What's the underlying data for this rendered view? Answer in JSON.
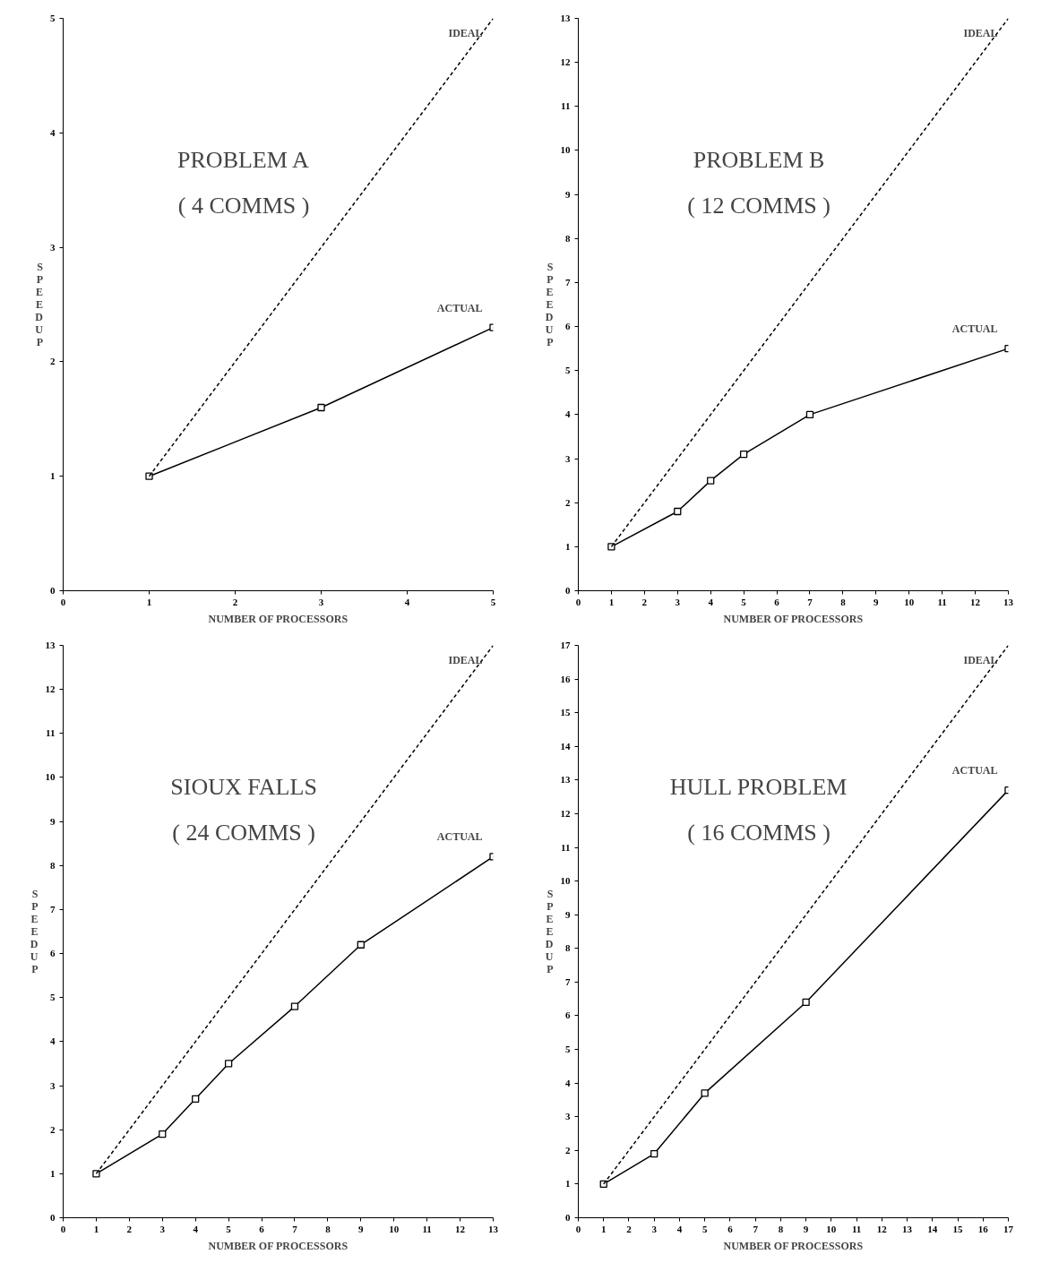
{
  "chart_data": [
    {
      "type": "line",
      "title": "PROBLEM A",
      "subtitle": "( 4 COMMS )",
      "xlabel": "NUMBER OF PROCESSORS",
      "ylabel": "SPEEDUP",
      "xlim": [
        0,
        5
      ],
      "ylim": [
        0,
        5
      ],
      "xticks": [
        0,
        1,
        2,
        3,
        4,
        5
      ],
      "yticks": [
        0,
        1,
        2,
        3,
        4,
        5
      ],
      "grid": false,
      "legend": false,
      "series": [
        {
          "name": "IDEAL",
          "color": "#000000",
          "x": [
            1,
            5
          ],
          "values": [
            1,
            5
          ],
          "line_style": "dashed"
        },
        {
          "name": "ACTUAL",
          "color": "#000000",
          "x": [
            1,
            3,
            5
          ],
          "values": [
            1,
            1.6,
            2.3
          ],
          "line_style": "solid",
          "marker": "square"
        }
      ]
    },
    {
      "type": "line",
      "title": "PROBLEM B",
      "subtitle": "( 12 COMMS )",
      "xlabel": "NUMBER OF PROCESSORS",
      "ylabel": "SPEEDUP",
      "xlim": [
        0,
        13
      ],
      "ylim": [
        0,
        13
      ],
      "xticks": [
        0,
        1,
        2,
        3,
        4,
        5,
        6,
        7,
        8,
        9,
        10,
        11,
        12,
        13
      ],
      "yticks": [
        0,
        1,
        2,
        3,
        4,
        5,
        6,
        7,
        8,
        9,
        10,
        11,
        12,
        13
      ],
      "grid": false,
      "legend": false,
      "series": [
        {
          "name": "IDEAL",
          "color": "#000000",
          "x": [
            1,
            13
          ],
          "values": [
            1,
            13
          ],
          "line_style": "dashed"
        },
        {
          "name": "ACTUAL",
          "color": "#000000",
          "x": [
            1,
            3,
            4,
            5,
            7,
            13
          ],
          "values": [
            1,
            1.8,
            2.5,
            3.1,
            4.0,
            5.5
          ],
          "line_style": "solid",
          "marker": "square"
        }
      ]
    },
    {
      "type": "line",
      "title": "SIOUX FALLS",
      "subtitle": "( 24 COMMS )",
      "xlabel": "NUMBER OF PROCESSORS",
      "ylabel": "SPEEDUP",
      "xlim": [
        0,
        13
      ],
      "ylim": [
        0,
        13
      ],
      "xticks": [
        0,
        1,
        2,
        3,
        4,
        5,
        6,
        7,
        8,
        9,
        10,
        11,
        12,
        13
      ],
      "yticks": [
        0,
        1,
        2,
        3,
        4,
        5,
        6,
        7,
        8,
        9,
        10,
        11,
        12,
        13
      ],
      "grid": false,
      "legend": false,
      "series": [
        {
          "name": "IDEAL",
          "color": "#000000",
          "x": [
            1,
            13
          ],
          "values": [
            1,
            13
          ],
          "line_style": "dashed"
        },
        {
          "name": "ACTUAL",
          "color": "#000000",
          "x": [
            1,
            3,
            4,
            5,
            7,
            9,
            13
          ],
          "values": [
            1,
            1.9,
            2.7,
            3.5,
            4.8,
            6.2,
            8.2
          ],
          "line_style": "solid",
          "marker": "square"
        }
      ]
    },
    {
      "type": "line",
      "title": "HULL PROBLEM",
      "subtitle": "( 16 COMMS )",
      "xlabel": "NUMBER OF PROCESSORS",
      "ylabel": "SPEEDUP",
      "xlim": [
        0,
        17
      ],
      "ylim": [
        0,
        17
      ],
      "xticks": [
        0,
        1,
        2,
        3,
        4,
        5,
        6,
        7,
        8,
        9,
        10,
        11,
        12,
        13,
        14,
        15,
        16,
        17
      ],
      "yticks": [
        0,
        1,
        2,
        3,
        4,
        5,
        6,
        7,
        8,
        9,
        10,
        11,
        12,
        13,
        14,
        15,
        16,
        17
      ],
      "grid": false,
      "legend": false,
      "series": [
        {
          "name": "IDEAL",
          "color": "#000000",
          "x": [
            1,
            17
          ],
          "values": [
            1,
            17
          ],
          "line_style": "dashed"
        },
        {
          "name": "ACTUAL",
          "color": "#000000",
          "x": [
            1,
            3,
            5,
            9,
            17
          ],
          "values": [
            1,
            1.9,
            3.7,
            6.4,
            12.7
          ],
          "line_style": "solid",
          "marker": "square"
        }
      ]
    }
  ]
}
